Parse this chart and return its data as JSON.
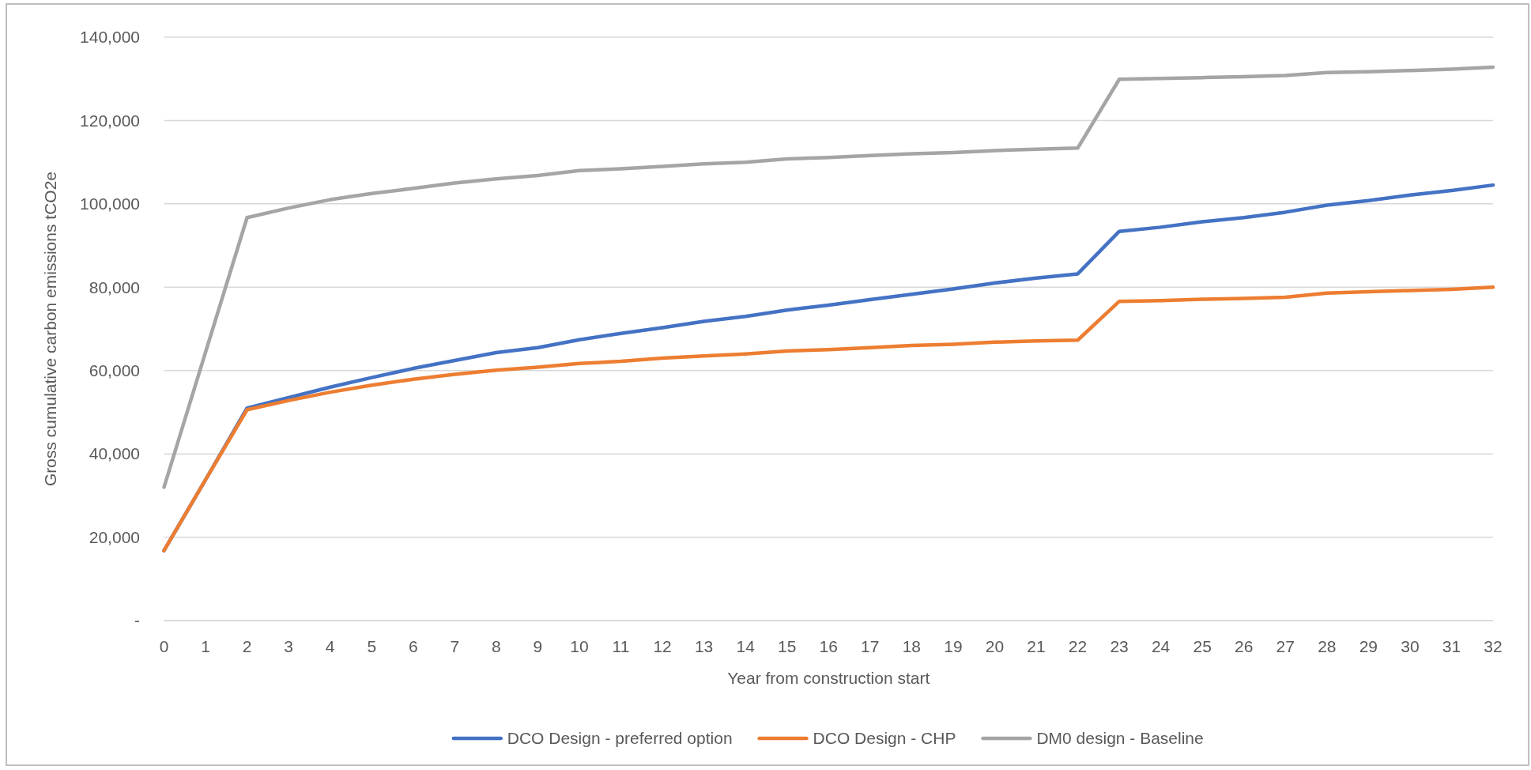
{
  "chart_data": {
    "type": "line",
    "xlabel": "Year from construction start",
    "ylabel": "Gross cumulative carbon emissions tCO2e",
    "x": [
      0,
      1,
      2,
      3,
      4,
      5,
      6,
      7,
      8,
      9,
      10,
      11,
      12,
      13,
      14,
      15,
      16,
      17,
      18,
      19,
      20,
      21,
      22,
      23,
      24,
      25,
      26,
      27,
      28,
      29,
      30,
      31,
      32
    ],
    "xlim": [
      0,
      32
    ],
    "xticks": [
      0,
      1,
      2,
      3,
      4,
      5,
      6,
      7,
      8,
      9,
      10,
      11,
      12,
      13,
      14,
      15,
      16,
      17,
      18,
      19,
      20,
      21,
      22,
      23,
      24,
      25,
      26,
      27,
      28,
      29,
      30,
      31,
      32
    ],
    "ylim": [
      0,
      140000
    ],
    "yticks": [
      {
        "value": 0,
        "label": "-"
      },
      {
        "value": 20000,
        "label": "20,000"
      },
      {
        "value": 40000,
        "label": "40,000"
      },
      {
        "value": 60000,
        "label": "60,000"
      },
      {
        "value": 80000,
        "label": "80,000"
      },
      {
        "value": 100000,
        "label": "100,000"
      },
      {
        "value": 120000,
        "label": "120,000"
      },
      {
        "value": 140000,
        "label": "140,000"
      }
    ],
    "grid": "y",
    "legend": "bottom",
    "line_style": "solid",
    "series": [
      {
        "name": "DCO Design - preferred option",
        "color": "#4472c4",
        "values": [
          16800,
          33800,
          51000,
          53500,
          56000,
          58300,
          60500,
          62400,
          64300,
          65500,
          67400,
          68900,
          70300,
          71800,
          73000,
          74500,
          75700,
          77000,
          78300,
          79600,
          81000,
          82200,
          83200,
          93400,
          94400,
          95700,
          96700,
          98000,
          99700,
          100800,
          102100,
          103200,
          104500
        ]
      },
      {
        "name": "DCO Design - CHP",
        "color": "#ed7d31",
        "values": [
          16800,
          33800,
          50600,
          52800,
          54800,
          56500,
          57900,
          59100,
          60100,
          60800,
          61700,
          62200,
          63000,
          63500,
          64000,
          64700,
          65000,
          65500,
          66000,
          66300,
          66800,
          67100,
          67300,
          76600,
          76800,
          77100,
          77300,
          77600,
          78600,
          78900,
          79200,
          79500,
          80000
        ]
      },
      {
        "name": "DM0 design - Baseline",
        "color": "#a5a5a5",
        "values": [
          32000,
          64400,
          96700,
          99000,
          101000,
          102500,
          103700,
          105000,
          106000,
          106800,
          108000,
          108400,
          109000,
          109600,
          110000,
          110800,
          111100,
          111600,
          112000,
          112300,
          112800,
          113100,
          113400,
          129900,
          130100,
          130300,
          130500,
          130800,
          131500,
          131700,
          132000,
          132300,
          132800
        ]
      }
    ]
  }
}
